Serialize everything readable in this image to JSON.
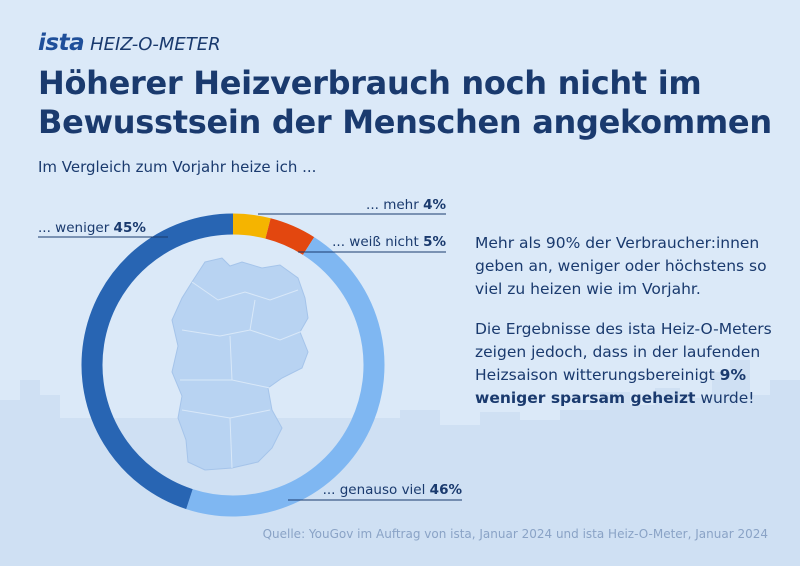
{
  "brand": {
    "logo": "ista",
    "product": "HEIZ-O-METER"
  },
  "title": {
    "line1": "Höherer Heizverbrauch noch nicht im",
    "line2": "Bewusstsein der Menschen angekommen"
  },
  "subtitle": "Im Vergleich zum Vorjahr heize ich ...",
  "chart_data": {
    "type": "pie",
    "variant": "donut",
    "title": "Im Vergleich zum Vorjahr heize ich ...",
    "categories": [
      "mehr",
      "weiß nicht",
      "genauso viel",
      "weniger"
    ],
    "values": [
      4,
      5,
      46,
      45
    ],
    "unit": "%",
    "colors": [
      "#f5b400",
      "#e3470f",
      "#7fb7f2",
      "#2865b3"
    ],
    "labels": [
      {
        "text": "... mehr",
        "value": "4%"
      },
      {
        "text": "... weiß nicht",
        "value": "5%"
      },
      {
        "text": "... genauso viel",
        "value": "46%"
      },
      {
        "text": "... weniger",
        "value": "45%"
      }
    ]
  },
  "info": {
    "paragraph1": "Mehr als 90% der Verbraucher:innen geben an, weniger oder höchstens so viel zu heizen wie im Vorjahr.",
    "paragraph2_text": "Die Ergebnisse des ista Heiz-O-Meters zeigen jedoch, dass in der laufenden Heizsaison witterungsbereinigt",
    "paragraph2_bold": "9% weniger sparsam geheizt",
    "paragraph2_end": " wurde!"
  },
  "source": "Quelle: YouGov im Auftrag von ista, Januar 2024 und ista Heiz-O-Meter, Januar 2024"
}
